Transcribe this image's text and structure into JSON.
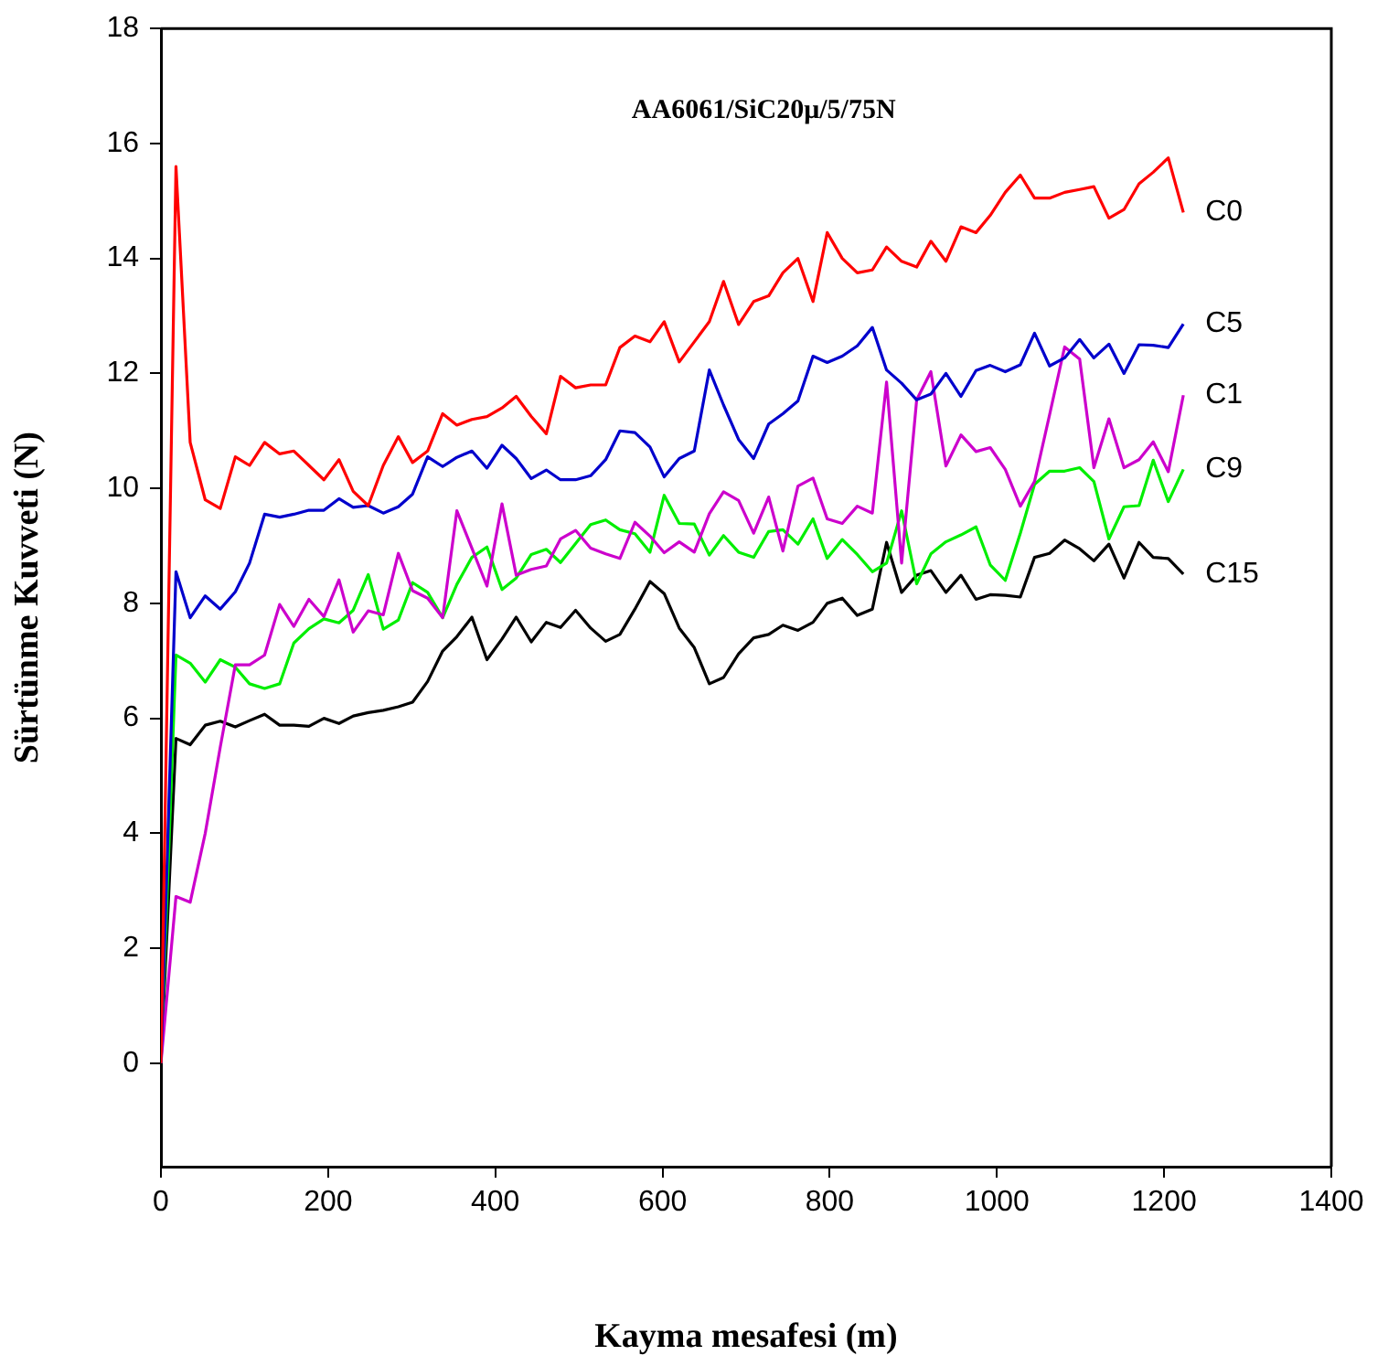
{
  "chart_data": {
    "type": "line",
    "title": "AA6061/SiC20μ/5/75N",
    "xlabel": "Kayma mesafesi (m)",
    "ylabel": "Sürtünme Kuvveti (N)",
    "x": [
      0,
      18,
      35,
      53,
      71,
      89,
      106,
      124,
      142,
      159,
      177,
      195,
      213,
      230,
      248,
      266,
      284,
      301,
      319,
      337,
      354,
      372,
      390,
      408,
      425,
      443,
      461,
      478,
      496,
      514,
      532,
      549,
      567,
      585,
      602,
      620,
      638,
      656,
      673,
      691,
      709,
      727,
      744,
      762,
      780,
      797,
      815,
      833,
      851,
      868,
      886,
      904,
      921,
      939,
      957,
      975,
      992,
      1010,
      1028,
      1045,
      1063,
      1081,
      1099,
      1116,
      1134,
      1152,
      1170,
      1187,
      1205,
      1223
    ],
    "xlim": [
      0,
      1400
    ],
    "xticks": [
      0,
      200,
      400,
      600,
      800,
      1000,
      1200,
      1400
    ],
    "ylim": [
      -1.8,
      18
    ],
    "yticks": [
      0,
      2,
      4,
      6,
      8,
      10,
      12,
      14,
      16,
      18
    ],
    "grid": false,
    "legend": false,
    "series": [
      {
        "name": "C0",
        "color": "#ff0000",
        "values": [
          0,
          15.6,
          10.8,
          9.8,
          9.65,
          10.55,
          10.4,
          10.8,
          10.6,
          10.65,
          10.4,
          10.15,
          10.5,
          9.95,
          9.7,
          10.4,
          10.9,
          10.45,
          10.65,
          11.3,
          11.1,
          11.2,
          11.25,
          11.4,
          11.6,
          11.25,
          10.95,
          11.95,
          11.75,
          11.8,
          11.8,
          12.45,
          12.65,
          12.55,
          12.9,
          12.2,
          12.55,
          12.9,
          13.6,
          12.85,
          13.25,
          13.35,
          13.75,
          14.0,
          13.25,
          14.45,
          14.0,
          13.75,
          13.8,
          14.2,
          13.95,
          13.85,
          14.3,
          13.95,
          14.55,
          14.45,
          14.75,
          15.15,
          15.45,
          15.05,
          15.05,
          15.15,
          15.2,
          15.25,
          14.7,
          14.85,
          15.3,
          15.5,
          15.75,
          14.8
        ]
      },
      {
        "name": "C5",
        "color": "#0000cc",
        "values": [
          0,
          8.55,
          7.75,
          8.13,
          7.9,
          8.2,
          8.7,
          9.55,
          9.5,
          9.55,
          9.62,
          9.62,
          9.82,
          9.67,
          9.7,
          9.57,
          9.68,
          9.9,
          10.55,
          10.38,
          10.54,
          10.65,
          10.35,
          10.75,
          10.52,
          10.17,
          10.32,
          10.15,
          10.15,
          10.22,
          10.5,
          11.0,
          10.97,
          10.72,
          10.2,
          10.52,
          10.65,
          12.06,
          11.45,
          10.85,
          10.52,
          11.12,
          11.3,
          11.52,
          12.3,
          12.19,
          12.3,
          12.48,
          12.8,
          12.06,
          11.83,
          11.54,
          11.64,
          12.0,
          11.6,
          12.05,
          12.14,
          12.03,
          12.15,
          12.7,
          12.13,
          12.27,
          12.59,
          12.27,
          12.51,
          12.0,
          12.5,
          12.49,
          12.45,
          12.86
        ]
      },
      {
        "name": "C1",
        "color": "#cc00cc",
        "values": [
          0,
          2.9,
          2.8,
          4.0,
          5.5,
          6.93,
          6.93,
          7.1,
          7.98,
          7.6,
          8.07,
          7.77,
          8.41,
          7.5,
          7.87,
          7.8,
          8.87,
          8.22,
          8.09,
          7.75,
          9.61,
          8.96,
          8.3,
          9.73,
          8.49,
          8.59,
          8.65,
          9.12,
          9.27,
          8.96,
          8.86,
          8.78,
          9.41,
          9.17,
          8.88,
          9.07,
          8.89,
          9.56,
          9.94,
          9.79,
          9.22,
          9.85,
          8.91,
          10.04,
          10.18,
          9.47,
          9.39,
          9.69,
          9.57,
          11.85,
          8.7,
          11.54,
          12.03,
          10.39,
          10.93,
          10.64,
          10.71,
          10.33,
          9.69,
          10.12,
          11.28,
          12.46,
          12.25,
          10.36,
          11.21,
          10.36,
          10.5,
          10.81,
          10.29,
          11.62
        ]
      },
      {
        "name": "C9",
        "color": "#00ee00",
        "values": [
          0,
          7.1,
          6.96,
          6.63,
          7.02,
          6.89,
          6.6,
          6.52,
          6.6,
          7.31,
          7.56,
          7.73,
          7.66,
          7.88,
          8.5,
          7.55,
          7.71,
          8.36,
          8.19,
          7.75,
          8.33,
          8.8,
          8.98,
          8.24,
          8.44,
          8.85,
          8.94,
          8.71,
          9.04,
          9.37,
          9.45,
          9.28,
          9.21,
          8.89,
          9.88,
          9.39,
          9.38,
          8.84,
          9.18,
          8.89,
          8.8,
          9.25,
          9.28,
          9.03,
          9.47,
          8.78,
          9.11,
          8.85,
          8.55,
          8.7,
          9.61,
          8.34,
          8.86,
          9.07,
          9.19,
          9.33,
          8.67,
          8.4,
          9.22,
          10.07,
          10.3,
          10.3,
          10.36,
          10.12,
          9.12,
          9.68,
          9.7,
          10.49,
          9.77,
          10.33
        ]
      },
      {
        "name": "C15",
        "color": "#000000",
        "values": [
          0,
          5.65,
          5.54,
          5.88,
          5.95,
          5.85,
          5.96,
          6.07,
          5.88,
          5.88,
          5.86,
          6.0,
          5.91,
          6.04,
          6.1,
          6.14,
          6.2,
          6.28,
          6.64,
          7.17,
          7.42,
          7.76,
          7.02,
          7.38,
          7.76,
          7.33,
          7.67,
          7.58,
          7.88,
          7.57,
          7.34,
          7.46,
          7.9,
          8.38,
          8.17,
          7.57,
          7.23,
          6.6,
          6.71,
          7.12,
          7.4,
          7.46,
          7.62,
          7.53,
          7.67,
          8.0,
          8.09,
          7.79,
          7.9,
          9.06,
          8.19,
          8.49,
          8.57,
          8.19,
          8.49,
          8.07,
          8.15,
          8.14,
          8.11,
          8.8,
          8.87,
          9.1,
          8.95,
          8.74,
          9.03,
          8.44,
          9.06,
          8.8,
          8.78,
          8.51
        ]
      }
    ]
  }
}
